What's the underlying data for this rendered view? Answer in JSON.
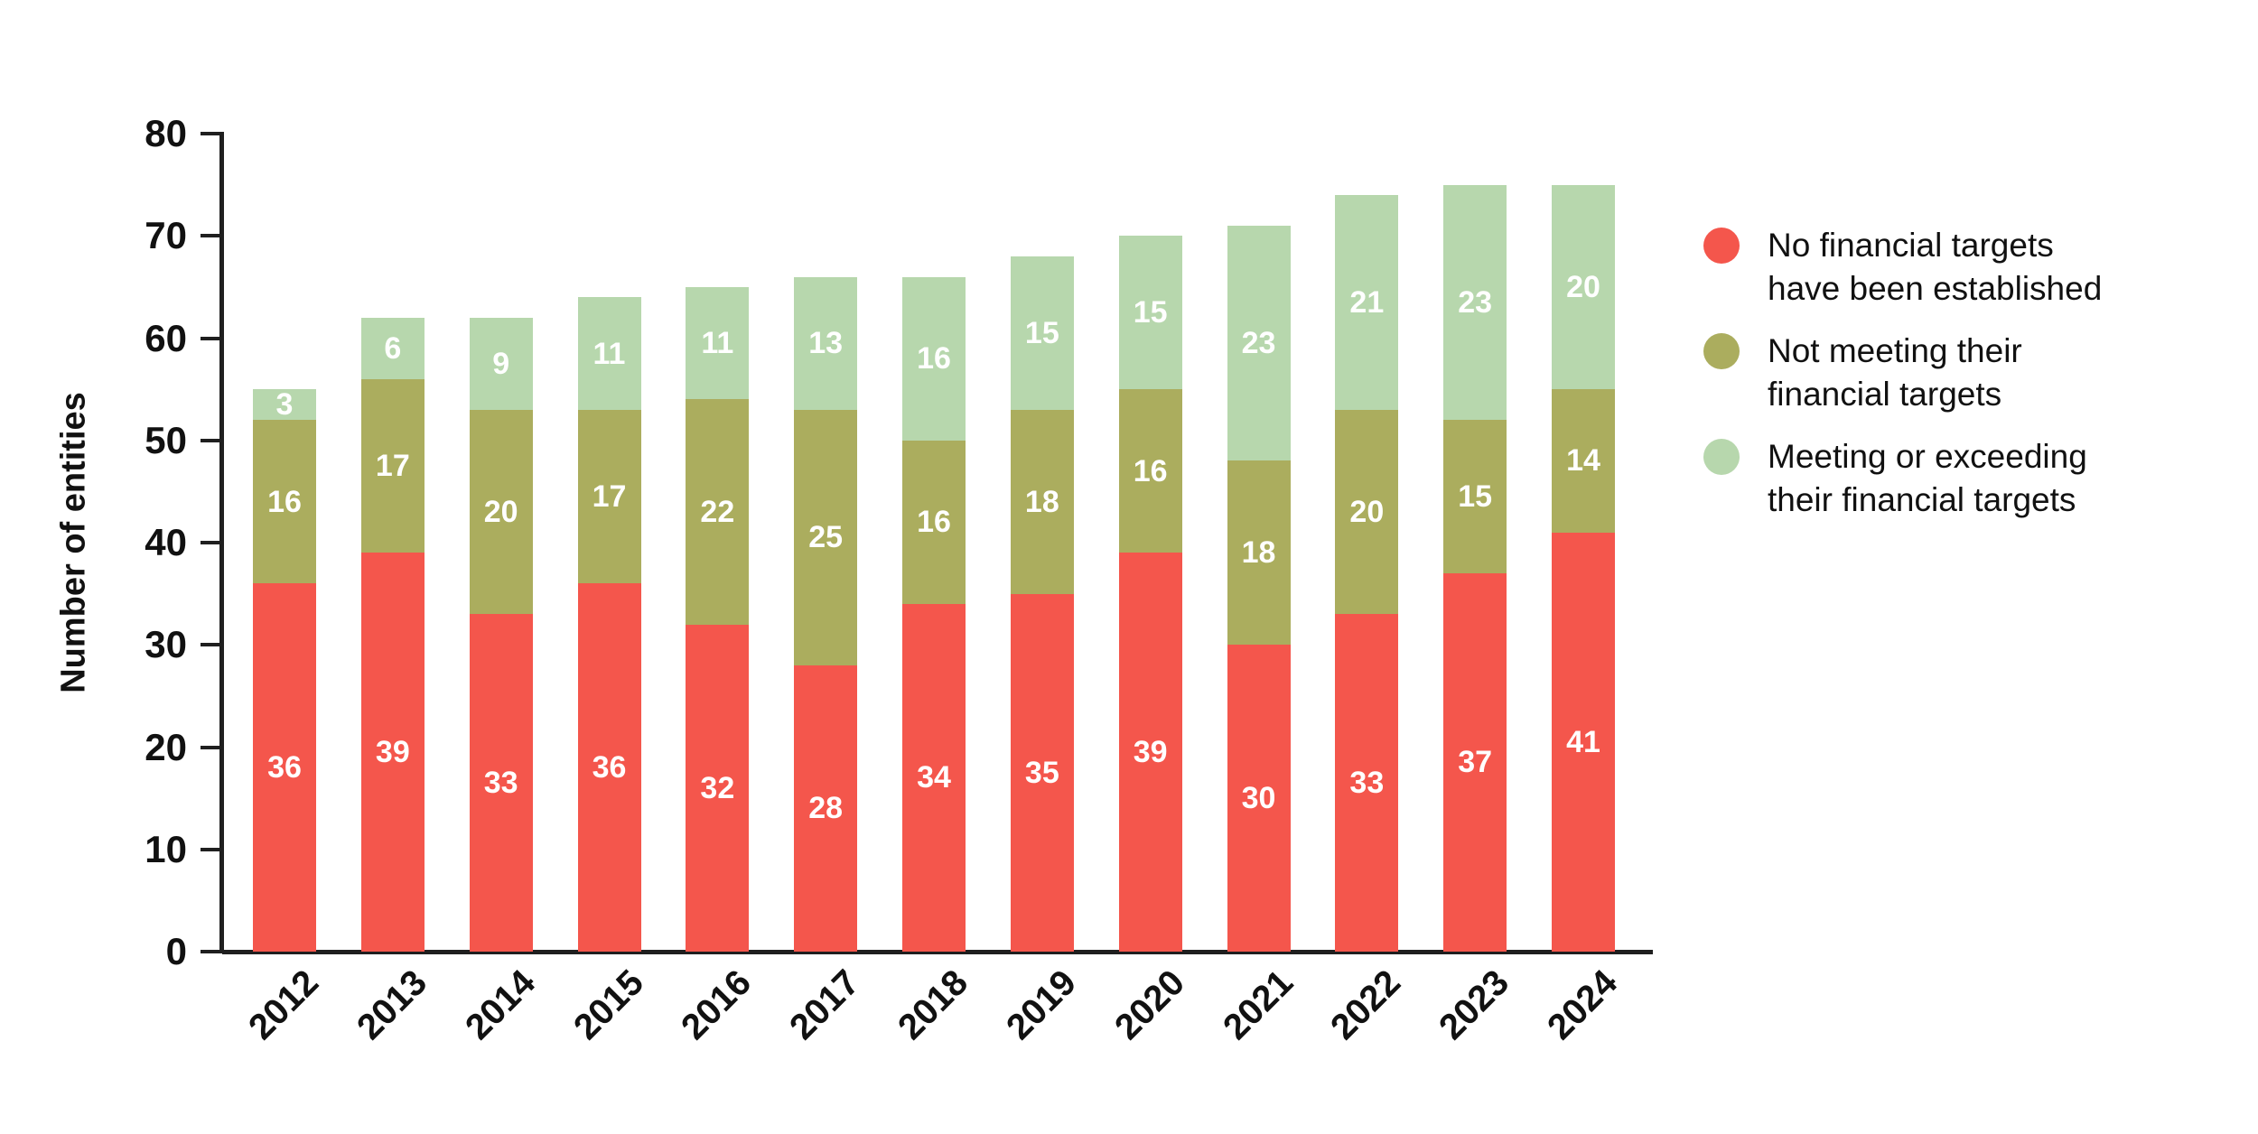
{
  "chart_data": {
    "type": "bar",
    "stacked": true,
    "title": "",
    "xlabel": "",
    "ylabel": "Number of entities",
    "ylim": [
      0,
      80
    ],
    "yticks": [
      0,
      10,
      20,
      30,
      40,
      50,
      60,
      70,
      80
    ],
    "grid": false,
    "legend_position": "right",
    "categories": [
      "2012",
      "2013",
      "2014",
      "2015",
      "2016",
      "2017",
      "2018",
      "2019",
      "2020",
      "2021",
      "2022",
      "2023",
      "2024"
    ],
    "series": [
      {
        "name": "No financial targets have been established",
        "legend_label": "No financial targets\nhave been established",
        "color": "#F4564C",
        "values": [
          36,
          39,
          33,
          36,
          32,
          28,
          34,
          35,
          39,
          30,
          33,
          37,
          41
        ]
      },
      {
        "name": "Not meeting their financial targets",
        "legend_label": "Not meeting their\nfinancial targets",
        "color": "#ABAD5E",
        "values": [
          16,
          17,
          20,
          17,
          22,
          25,
          16,
          18,
          16,
          18,
          20,
          15,
          14
        ]
      },
      {
        "name": "Meeting or exceeding their financial targets",
        "legend_label": "Meeting or exceeding\ntheir financial targets",
        "color": "#B7D7AD",
        "values": [
          3,
          6,
          9,
          11,
          11,
          13,
          16,
          15,
          15,
          23,
          21,
          23,
          20
        ]
      }
    ],
    "value_label_color": "#FFFFFF",
    "axis_color": "#1F1F1F",
    "text_color": "#111111"
  }
}
